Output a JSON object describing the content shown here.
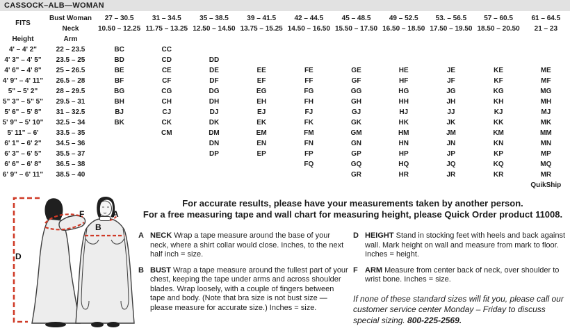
{
  "title": "CASSOCK–ALB—WOMAN",
  "colors": {
    "cream_band": "#f2eddb",
    "quikship_highlight": "#f8eca9",
    "unavailable_gray": "#d8d8d8",
    "measure_red": "#cf3a27",
    "titlebar_gray": "#e2e2e2"
  },
  "table": {
    "fits_label": "FITS",
    "bust_label": "Bust Woman",
    "neck_label": "Neck",
    "height_label": "Height",
    "arm_label": "Arm",
    "bust_ranges": [
      "27 – 30.5",
      "31 – 34.5",
      "35 – 38.5",
      "39 – 41.5",
      "42 – 44.5",
      "45 – 48.5",
      "49 – 52.5",
      "53. – 56.5",
      "57 – 60.5",
      "61 – 64.5"
    ],
    "neck_ranges": [
      "10.50 – 12.25",
      "11.75 – 13.25",
      "12.50 – 14.50",
      "13.75 – 15.25",
      "14.50 – 16.50",
      "15.50 – 17.50",
      "16.50 – 18.50",
      "17.50 – 19.50",
      "18.50 – 20.50",
      "21 – 23"
    ],
    "rows": [
      {
        "height": "4' – 4' 2\"",
        "arm": "22 – 23.5",
        "cells": [
          "BC",
          "CC",
          null,
          null,
          null,
          null,
          null,
          null,
          null,
          null
        ]
      },
      {
        "height": "4' 3\" – 4' 5\"",
        "arm": "23.5 – 25",
        "cells": [
          "BD",
          "CD",
          "DD",
          null,
          null,
          null,
          null,
          null,
          null,
          null
        ]
      },
      {
        "height": "4' 6\" – 4' 8\"",
        "arm": "25 – 26.5",
        "cells": [
          "BE",
          "CE",
          "DE",
          "EE",
          "FE",
          "GE",
          "HE",
          "JE",
          "KE",
          "ME"
        ]
      },
      {
        "height": "4' 9\" – 4' 11\"",
        "arm": "26.5 – 28",
        "cells": [
          "BF",
          "CF",
          "DF",
          "EF",
          "FF",
          "GF",
          "HF",
          "JF",
          "KF",
          "MF"
        ]
      },
      {
        "height": "5\" – 5' 2\"",
        "arm": "28 – 29.5",
        "cells": [
          "BG",
          "CG",
          "DG",
          "EG",
          "FG",
          "GG",
          "HG",
          "JG",
          "KG",
          "MG"
        ]
      },
      {
        "height": "5\" 3\" – 5\" 5\"",
        "arm": "29.5 – 31",
        "cells": [
          "BH",
          "CH",
          "DH",
          "EH",
          "FH",
          "GH",
          "HH",
          "JH",
          "KH",
          "MH"
        ]
      },
      {
        "height": "5' 6\" – 5' 8\"",
        "arm": "31 – 32.5",
        "cells": [
          "BJ",
          "CJ",
          "DJ",
          "EJ",
          "FJ",
          "GJ",
          "HJ",
          "JJ",
          "KJ",
          "MJ"
        ]
      },
      {
        "height": "5' 9\" – 5' 10\"",
        "arm": "32.5 – 34",
        "cells": [
          "BK",
          "CK",
          "DK",
          "EK",
          "FK",
          "GK",
          "HK",
          "JK",
          "KK",
          "MK"
        ]
      },
      {
        "height": "5' 11\" – 6'",
        "arm": "33.5 – 35",
        "cells": [
          null,
          "CM",
          "DM",
          "EM",
          "FM",
          "GM",
          "HM",
          "JM",
          "KM",
          "MM"
        ]
      },
      {
        "height": "6' 1\" – 6' 2\"",
        "arm": "34.5 – 36",
        "cells": [
          null,
          null,
          "DN",
          "EN",
          "FN",
          "GN",
          "HN",
          "JN",
          "KN",
          "MN"
        ]
      },
      {
        "height": "6' 3\" – 6' 5\"",
        "arm": "35.5 – 37",
        "cells": [
          null,
          null,
          "DP",
          "EP",
          "FP",
          "GP",
          "HP",
          "JP",
          "KP",
          "MP"
        ]
      },
      {
        "height": "6' 6\" – 6' 8\"",
        "arm": "36.5 – 38",
        "cells": [
          null,
          null,
          null,
          null,
          "FQ",
          "GQ",
          "HQ",
          "JQ",
          "KQ",
          "MQ"
        ]
      },
      {
        "height": "6' 9\" – 6' 11\"",
        "arm": "38.5 – 40",
        "cells": [
          null,
          null,
          null,
          null,
          null,
          "GR",
          "HR",
          "JR",
          "KR",
          "MR"
        ]
      }
    ],
    "quikship_codes": [
      "CG",
      "DG",
      "EG",
      "CH",
      "DH",
      "EH",
      "FH",
      "DJ",
      "EJ",
      "FJ",
      "GJ",
      "DK",
      "EK",
      "FK",
      "GK",
      "HK",
      "EM",
      "FM",
      "GM",
      "HM",
      "FN",
      "GN",
      "HN"
    ],
    "quikship_label": "QuikShip"
  },
  "intro": {
    "line1": "For accurate results, please have your measurements taken by another person.",
    "line2": "For a free measuring tape and wall chart for measuring height, please Quick Order product 11008."
  },
  "instructions": [
    {
      "key": "A",
      "term": "NECK",
      "text": "Wrap a tape measure around the base of your neck, where a shirt collar would close. Inches, to the next half inch = size."
    },
    {
      "key": "B",
      "term": "BUST",
      "text": "Wrap a tape measure around the fullest part of your chest, keeping the tape under arms and across shoulder blades. Wrap loosely, with a couple of fingers between tape and body. (Note that bra size is not bust size — please measure for accurate size.) Inches = size."
    },
    {
      "key": "D",
      "term": "HEIGHT",
      "text": "Stand in stocking feet with heels and back against wall. Mark height on wall and measure from mark to floor. Inches = height."
    },
    {
      "key": "F",
      "term": "ARM",
      "text": "Measure from center back of neck, over shoulder to wrist bone. Inches = size."
    }
  ],
  "special_note": {
    "text": "If none of these standard sizes will fit you, please call our customer service center Monday – Friday to discuss special sizing. ",
    "phone": "800-225-2569."
  },
  "figure_labels": {
    "a": "A",
    "b": "B",
    "d": "D",
    "f": "F"
  }
}
